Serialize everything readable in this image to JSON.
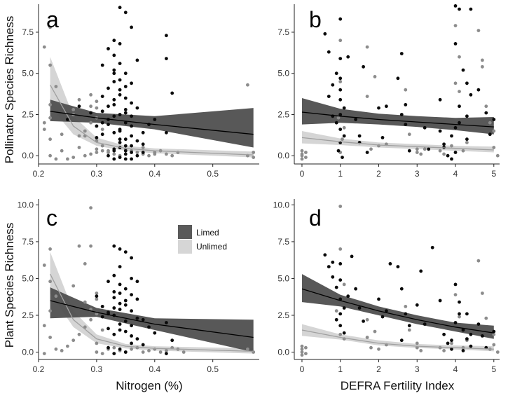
{
  "legend": {
    "entries": [
      {
        "name": "Limed",
        "color": "#5a5a5a"
      },
      {
        "name": "Unlimed",
        "color": "#d6d6d6"
      }
    ]
  },
  "colors": {
    "limed_points": "#0a0a0a",
    "unlimed_points": "#8c8c8c",
    "limed_band": "#4f4f4f",
    "unlimed_band": "#d3d3d3",
    "limed_line": "#000000",
    "unlimed_line": "#a0a0a0"
  },
  "chart_data": [
    {
      "panel": "a",
      "type": "scatter",
      "xlabel": "",
      "ylabel": "Pollinator Species Richness",
      "xlim": [
        0.2,
        0.58
      ],
      "ylim": [
        -0.5,
        9.2
      ],
      "xticks": [
        "0.2",
        "0.3",
        "0.4",
        "0.5"
      ],
      "xtick_values": [
        0.2,
        0.3,
        0.4,
        0.5
      ],
      "yticks": [
        "0.0",
        "2.5",
        "5.0",
        "7.5"
      ],
      "ytick_values": [
        0,
        2.5,
        5,
        7.5
      ],
      "limed_line": {
        "x": [
          0.22,
          0.3,
          0.4,
          0.57
        ],
        "y": [
          2.7,
          2.3,
          1.9,
          1.3
        ]
      },
      "limed_band_upper": [
        3.4,
        2.6,
        2.4,
        2.9
      ],
      "limed_band_lower": [
        2.1,
        2.0,
        1.6,
        0.5
      ],
      "unlimed_line": {
        "x": [
          0.22,
          0.26,
          0.3,
          0.35,
          0.4,
          0.57
        ],
        "y": [
          4.3,
          1.8,
          0.8,
          0.45,
          0.3,
          0.05
        ]
      },
      "unlimed_band_upper": [
        6.0,
        2.4,
        1.1,
        0.6,
        0.45,
        0.25
      ],
      "unlimed_band_lower": [
        3.0,
        1.3,
        0.6,
        0.3,
        0.15,
        -0.1
      ],
      "limed_points": {
        "x": [
          0.31,
          0.32,
          0.33,
          0.34,
          0.35,
          0.36,
          0.33,
          0.34,
          0.35,
          0.34,
          0.32,
          0.31,
          0.33,
          0.36,
          0.37,
          0.35,
          0.34,
          0.33,
          0.32,
          0.35,
          0.36,
          0.34,
          0.33,
          0.31,
          0.3,
          0.35,
          0.37,
          0.38,
          0.34,
          0.33,
          0.36,
          0.35,
          0.32,
          0.34,
          0.33,
          0.35,
          0.36,
          0.38,
          0.39,
          0.4,
          0.42,
          0.42,
          0.43,
          0.42,
          0.34,
          0.33,
          0.32,
          0.31,
          0.35,
          0.36,
          0.37,
          0.34,
          0.33,
          0.35,
          0.3,
          0.29,
          0.27,
          0.25,
          0.34,
          0.34,
          0.35,
          0.36,
          0.33,
          0.32,
          0.34,
          0.35,
          0.36,
          0.37,
          0.38,
          0.33,
          0.31,
          0.34,
          0.35,
          0.36,
          0.33
        ],
        "y": [
          5.5,
          6.5,
          7.0,
          9.0,
          8.7,
          7.8,
          6.1,
          5.6,
          5.0,
          4.6,
          4.1,
          3.6,
          3.4,
          3.2,
          2.9,
          2.6,
          2.5,
          2.4,
          2.2,
          2.0,
          1.8,
          1.6,
          1.4,
          1.3,
          1.1,
          1.0,
          0.9,
          0.7,
          0.5,
          0.3,
          0.2,
          0.1,
          0.0,
          -0.1,
          -0.2,
          -0.2,
          0.6,
          1.4,
          1.9,
          2.2,
          7.3,
          5.9,
          3.8,
          1.4,
          4.0,
          4.5,
          3.0,
          2.7,
          3.5,
          4.4,
          5.8,
          6.8,
          5.2,
          4.2,
          1.8,
          2.6,
          3.0,
          2.2,
          0.8,
          1.5,
          2.8,
          1.2,
          0.4,
          1.9,
          3.7,
          0.3,
          2.4,
          0.0,
          0.2,
          5.0,
          2.0,
          1.0,
          0.6,
          -0.2,
          3.1
        ]
      },
      "unlimed_points": {
        "x": [
          0.22,
          0.21,
          0.22,
          0.23,
          0.22,
          0.21,
          0.22,
          0.27,
          0.28,
          0.26,
          0.3,
          0.29,
          0.31,
          0.3,
          0.29,
          0.3,
          0.28,
          0.27,
          0.3,
          0.31,
          0.32,
          0.3,
          0.29,
          0.28,
          0.26,
          0.25,
          0.24,
          0.3,
          0.31,
          0.32,
          0.33,
          0.34,
          0.35,
          0.36,
          0.37,
          0.38,
          0.39,
          0.4,
          0.41,
          0.42,
          0.43,
          0.44,
          0.56,
          0.57,
          0.56,
          0.57,
          0.22,
          0.23,
          0.29,
          0.3,
          0.31,
          0.24,
          0.26,
          0.27,
          0.21,
          0.22,
          0.38,
          0.4
        ],
        "y": [
          7.8,
          6.6,
          5.5,
          4.2,
          3.1,
          2.0,
          1.0,
          0.5,
          1.2,
          2.5,
          3.3,
          3.0,
          2.7,
          2.3,
          2.0,
          1.8,
          1.5,
          1.2,
          0.9,
          0.6,
          0.3,
          0.2,
          0.1,
          0.0,
          -0.1,
          -0.2,
          0.3,
          0.4,
          0.3,
          0.2,
          0.1,
          0.0,
          0.4,
          0.3,
          0.2,
          0.1,
          0.0,
          0.2,
          0.3,
          0.1,
          0.0,
          0.2,
          4.3,
          0.2,
          0.0,
          -0.1,
          0.0,
          -0.2,
          3.7,
          2.9,
          1.6,
          1.3,
          2.8,
          3.4,
          1.6,
          2.3,
          0.5,
          0.1
        ]
      }
    },
    {
      "panel": "b",
      "type": "scatter",
      "xlabel": "",
      "ylabel": "",
      "xlim": [
        -0.2,
        5.15
      ],
      "ylim": [
        -0.5,
        9.2
      ],
      "xticks": [
        "0",
        "1",
        "2",
        "3",
        "4",
        "5"
      ],
      "xtick_values": [
        0,
        1,
        2,
        3,
        4,
        5
      ],
      "yticks": [
        "0.0",
        "2.5",
        "5.0",
        "7.5"
      ],
      "ytick_values": [
        0,
        2.5,
        5,
        7.5
      ],
      "limed_line": {
        "x": [
          0,
          1,
          2,
          3,
          4,
          5
        ],
        "y": [
          2.65,
          2.4,
          2.2,
          2.05,
          1.9,
          1.75
        ]
      },
      "limed_band_upper": [
        3.5,
        2.85,
        2.55,
        2.4,
        2.3,
        2.35
      ],
      "limed_band_lower": [
        1.9,
        2.0,
        1.9,
        1.75,
        1.55,
        1.3
      ],
      "unlimed_line": {
        "x": [
          0,
          1,
          2,
          3,
          4,
          5
        ],
        "y": [
          1.1,
          0.85,
          0.65,
          0.55,
          0.45,
          0.35
        ]
      },
      "unlimed_band_upper": [
        1.5,
        1.05,
        0.8,
        0.7,
        0.6,
        0.55
      ],
      "unlimed_band_lower": [
        0.75,
        0.65,
        0.5,
        0.4,
        0.3,
        0.2
      ],
      "limed_points": {
        "x": [
          0.6,
          0.7,
          0.8,
          0.9,
          1.0,
          1.0,
          1.1,
          1.0,
          0.9,
          1.0,
          1.1,
          1.0,
          0.95,
          1.05,
          1.0,
          1.4,
          1.5,
          1.6,
          1.7,
          2.0,
          2.2,
          2.5,
          2.6,
          2.7,
          2.8,
          3.2,
          3.6,
          3.7,
          3.8,
          3.9,
          4.0,
          4.1,
          4.0,
          4.2,
          4.3,
          4.4,
          4.3,
          4.0,
          3.9,
          3.7,
          4.1,
          4.4,
          4.6,
          4.8,
          5.0,
          0.7,
          1.0,
          1.5,
          2.6,
          3.6,
          4.0,
          4.3,
          1.0,
          1.2,
          0.8,
          2.1,
          2.7,
          3.3,
          4.1,
          4.9
        ],
        "y": [
          7.4,
          6.3,
          4.3,
          5.0,
          8.3,
          4.0,
          2.9,
          2.5,
          2.0,
          1.6,
          1.2,
          0.8,
          0.3,
          -0.1,
          3.4,
          2.2,
          1.2,
          5.4,
          0.2,
          2.9,
          3.0,
          4.7,
          6.2,
          1.9,
          0.3,
          1.7,
          3.4,
          0.5,
          0.0,
          -0.2,
          9.1,
          8.9,
          6.8,
          5.2,
          4.4,
          3.7,
          2.4,
          1.7,
          1.2,
          0.7,
          3.0,
          8.9,
          4.0,
          2.6,
          2.2,
          3.6,
          5.9,
          0.8,
          2.5,
          1.5,
          0.2,
          1.0,
          4.7,
          6.0,
          2.4,
          1.1,
          3.1,
          0.4,
          2.0,
          1.3
        ]
      },
      "unlimed_points": {
        "x": [
          0.0,
          0.0,
          0.1,
          0.0,
          0.1,
          0.0,
          1.0,
          1.0,
          1.1,
          1.0,
          1.7,
          1.7,
          1.8,
          2.2,
          2.7,
          2.8,
          3.0,
          3.1,
          3.6,
          3.7,
          4.0,
          4.1,
          3.9,
          4.2,
          4.3,
          4.6,
          4.7,
          4.8,
          5.0,
          5.1,
          5.0,
          4.9,
          4.7,
          2.0,
          3.0,
          3.2,
          1.9,
          0.95,
          1.05,
          4.0,
          4.1
        ],
        "y": [
          0.1,
          0.3,
          -0.1,
          0.0,
          0.2,
          -0.2,
          7.0,
          4.5,
          1.7,
          0.2,
          6.6,
          3.6,
          0.4,
          0.7,
          4.0,
          1.3,
          0.4,
          0.1,
          0.3,
          0.1,
          7.9,
          6.0,
          0.6,
          0.3,
          0.8,
          7.6,
          5.4,
          3.0,
          0.5,
          0.0,
          1.5,
          2.0,
          5.8,
          0.6,
          0.2,
          0.4,
          4.8,
          2.3,
          1.0,
          4.4,
          3.9
        ]
      }
    },
    {
      "panel": "c",
      "type": "scatter",
      "xlabel": "Nitrogen (%)",
      "ylabel": "Plant Species Richness",
      "xlim": [
        0.2,
        0.58
      ],
      "ylim": [
        -0.5,
        10.4
      ],
      "xticks": [
        "0.2",
        "0.3",
        "0.4",
        "0.5"
      ],
      "xtick_values": [
        0.2,
        0.3,
        0.4,
        0.5
      ],
      "yticks": [
        "0.0",
        "2.5",
        "5.0",
        "7.5",
        "10.0"
      ],
      "ytick_values": [
        0,
        2.5,
        5,
        7.5,
        10
      ],
      "limed_line": {
        "x": [
          0.22,
          0.3,
          0.4,
          0.57
        ],
        "y": [
          3.5,
          2.7,
          1.9,
          1.0
        ]
      },
      "limed_band_upper": [
        4.4,
        3.0,
        2.3,
        2.2
      ],
      "limed_band_lower": [
        2.3,
        2.4,
        1.5,
        0.0
      ],
      "unlimed_line": {
        "x": [
          0.22,
          0.26,
          0.3,
          0.35,
          0.4,
          0.57
        ],
        "y": [
          5.3,
          2.2,
          0.9,
          0.4,
          0.25,
          0.05
        ]
      },
      "unlimed_band_upper": [
        6.8,
        2.8,
        1.2,
        0.55,
        0.4,
        0.25
      ],
      "unlimed_band_lower": [
        4.0,
        1.7,
        0.6,
        0.25,
        0.1,
        -0.1
      ],
      "limed_points": {
        "x": [
          0.33,
          0.34,
          0.35,
          0.36,
          0.34,
          0.33,
          0.32,
          0.35,
          0.36,
          0.37,
          0.34,
          0.33,
          0.32,
          0.31,
          0.35,
          0.36,
          0.34,
          0.33,
          0.37,
          0.38,
          0.34,
          0.35,
          0.33,
          0.32,
          0.36,
          0.34,
          0.35,
          0.33,
          0.34,
          0.36,
          0.37,
          0.39,
          0.4,
          0.42,
          0.43,
          0.42,
          0.3,
          0.31,
          0.32,
          0.33,
          0.34,
          0.35,
          0.36,
          0.37,
          0.38,
          0.36,
          0.35,
          0.34,
          0.33,
          0.32
        ],
        "y": [
          7.2,
          7.0,
          6.8,
          6.4,
          5.8,
          5.2,
          4.8,
          4.3,
          3.9,
          3.6,
          3.3,
          3.0,
          2.7,
          2.4,
          2.1,
          1.8,
          1.5,
          1.2,
          0.9,
          0.5,
          0.2,
          0.0,
          -0.1,
          0.3,
          5.0,
          4.0,
          3.5,
          2.5,
          1.9,
          1.1,
          2.3,
          1.7,
          1.3,
          2.0,
          0.8,
          -0.1,
          3.8,
          3.1,
          2.6,
          4.1,
          4.6,
          3.2,
          2.8,
          4.8,
          2.2,
          0.6,
          1.4,
          2.9,
          3.7,
          1.6
        ]
      },
      "unlimed_points": {
        "x": [
          0.22,
          0.21,
          0.22,
          0.23,
          0.22,
          0.21,
          0.27,
          0.28,
          0.26,
          0.29,
          0.3,
          0.31,
          0.3,
          0.29,
          0.28,
          0.27,
          0.26,
          0.25,
          0.24,
          0.3,
          0.31,
          0.32,
          0.33,
          0.34,
          0.35,
          0.36,
          0.37,
          0.38,
          0.39,
          0.4,
          0.41,
          0.42,
          0.43,
          0.44,
          0.45,
          0.56,
          0.57,
          0.29,
          0.3,
          0.22,
          0.23,
          0.21,
          0.28,
          0.29,
          0.31,
          0.3
        ],
        "y": [
          7.0,
          5.9,
          4.8,
          3.8,
          2.8,
          1.8,
          7.2,
          6.0,
          4.5,
          9.8,
          3.6,
          3.1,
          2.6,
          2.2,
          1.7,
          1.2,
          0.8,
          0.4,
          0.1,
          0.0,
          -0.1,
          0.2,
          0.3,
          0.1,
          0.0,
          0.2,
          0.3,
          0.0,
          0.1,
          0.2,
          0.0,
          0.1,
          0.3,
          0.2,
          0.0,
          0.2,
          0.0,
          7.2,
          4.0,
          1.0,
          0.2,
          -0.1,
          3.4,
          2.9,
          1.5,
          0.6
        ]
      }
    },
    {
      "panel": "d",
      "type": "scatter",
      "xlabel": "DEFRA Fertility Index",
      "ylabel": "",
      "xlim": [
        -0.2,
        5.15
      ],
      "ylim": [
        -0.5,
        10.4
      ],
      "xticks": [
        "0",
        "1",
        "2",
        "3",
        "4",
        "5"
      ],
      "xtick_values": [
        0,
        1,
        2,
        3,
        4,
        5
      ],
      "yticks": [
        "0.0",
        "2.5",
        "5.0",
        "7.5",
        "10.0"
      ],
      "ytick_values": [
        0,
        2.5,
        5,
        7.5,
        10
      ],
      "limed_line": {
        "x": [
          0,
          1,
          2,
          3,
          4,
          5
        ],
        "y": [
          4.3,
          3.5,
          2.8,
          2.2,
          1.7,
          1.3
        ]
      },
      "limed_band_upper": [
        5.3,
        3.9,
        3.1,
        2.5,
        2.0,
        1.8
      ],
      "limed_band_lower": [
        3.4,
        3.1,
        2.5,
        1.9,
        1.4,
        0.9
      ],
      "unlimed_line": {
        "x": [
          0,
          1,
          2,
          3,
          4,
          5
        ],
        "y": [
          1.5,
          1.0,
          0.6,
          0.4,
          0.3,
          0.2
        ]
      },
      "unlimed_band_upper": [
        1.9,
        1.2,
        0.8,
        0.55,
        0.45,
        0.4
      ],
      "unlimed_band_lower": [
        1.1,
        0.85,
        0.45,
        0.28,
        0.18,
        0.05
      ],
      "limed_points": {
        "x": [
          0.6,
          0.7,
          0.8,
          0.9,
          1.0,
          1.0,
          1.1,
          1.0,
          0.9,
          1.0,
          1.1,
          1.3,
          1.4,
          1.5,
          1.6,
          2.0,
          2.2,
          2.3,
          2.5,
          2.6,
          2.7,
          2.8,
          3.0,
          3.1,
          3.4,
          3.6,
          3.7,
          3.8,
          3.9,
          4.0,
          4.1,
          4.0,
          4.2,
          4.3,
          4.4,
          4.3,
          4.6,
          4.7,
          4.8,
          5.0,
          0.8,
          1.0,
          1.2,
          2.1,
          2.6,
          3.2,
          4.1,
          4.4,
          3.9,
          4.2
        ],
        "y": [
          6.6,
          5.8,
          5.1,
          4.4,
          6.0,
          3.6,
          3.0,
          2.6,
          2.2,
          1.8,
          1.3,
          6.5,
          4.3,
          3.0,
          2.1,
          3.6,
          2.8,
          6.0,
          5.8,
          4.3,
          2.6,
          1.8,
          3.2,
          5.5,
          7.1,
          3.5,
          1.2,
          0.6,
          0.2,
          4.6,
          3.4,
          2.0,
          1.5,
          0.9,
          0.4,
          2.6,
          1.9,
          1.1,
          0.3,
          1.4,
          6.1,
          4.9,
          3.8,
          2.4,
          0.8,
          1.9,
          2.6,
          1.2,
          0.8,
          0.1
        ]
      },
      "unlimed_points": {
        "x": [
          0.0,
          0.0,
          0.1,
          0.0,
          0.1,
          0.0,
          1.0,
          1.0,
          1.1,
          1.0,
          1.7,
          1.7,
          1.8,
          2.2,
          2.7,
          2.8,
          3.0,
          3.1,
          3.6,
          3.7,
          4.0,
          4.1,
          3.9,
          4.2,
          4.3,
          4.6,
          4.7,
          4.8,
          5.0,
          5.1,
          5.0,
          4.9,
          0.9,
          1.1,
          2.0,
          3.0,
          1.9
        ],
        "y": [
          0.2,
          0.4,
          -0.1,
          0.0,
          0.3,
          -0.2,
          9.9,
          7.0,
          4.6,
          1.2,
          2.2,
          1.0,
          0.3,
          0.5,
          3.1,
          1.5,
          0.3,
          0.1,
          0.3,
          0.1,
          3.9,
          2.4,
          0.6,
          0.3,
          0.8,
          6.2,
          4.0,
          2.3,
          0.5,
          0.0,
          1.2,
          0.2,
          2.8,
          0.9,
          0.2,
          0.6,
          1.4
        ]
      }
    }
  ]
}
